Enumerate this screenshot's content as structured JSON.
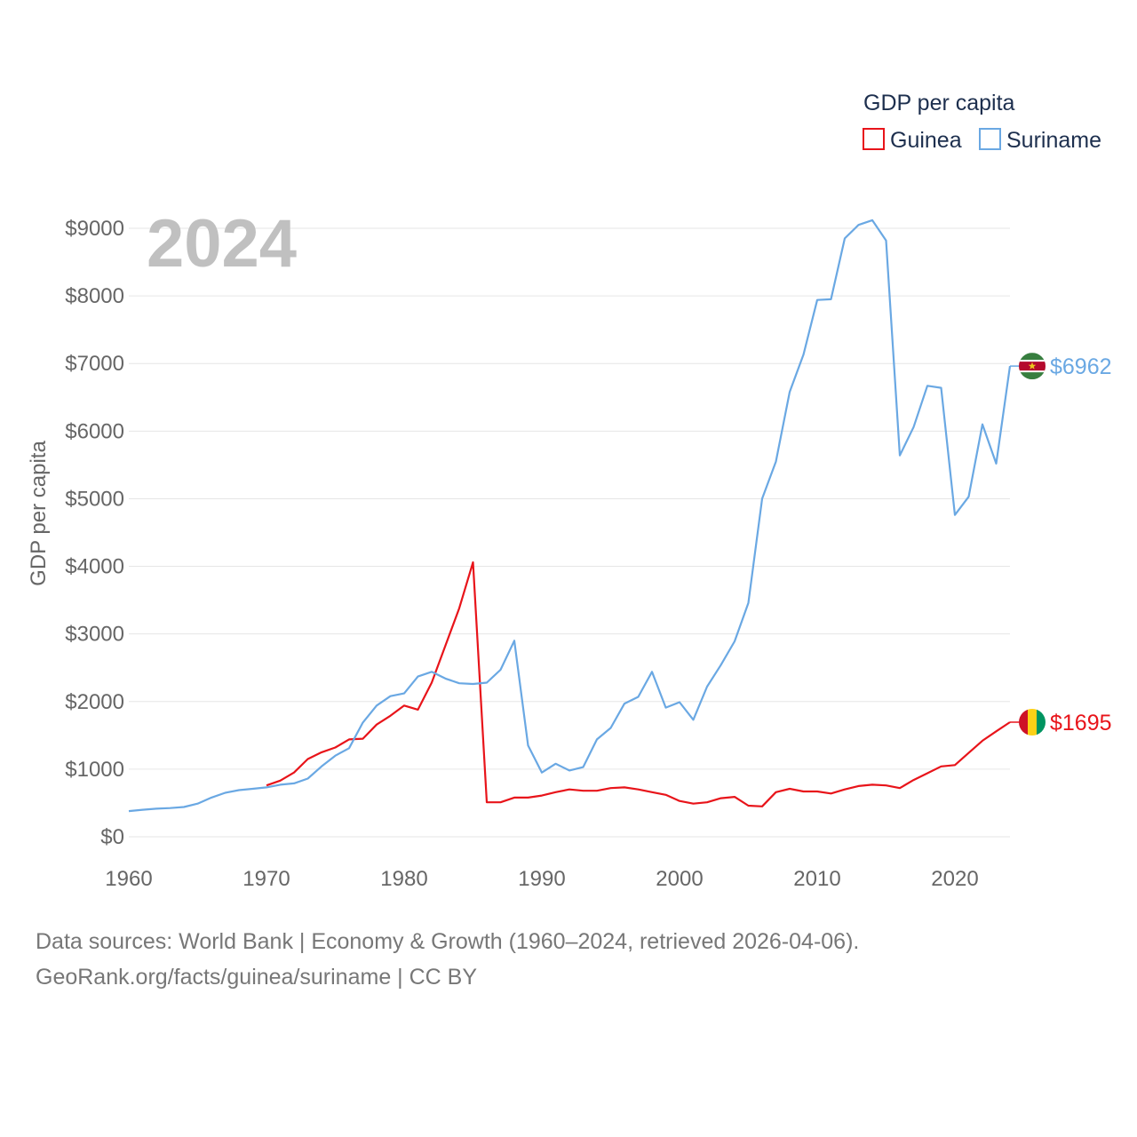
{
  "chart_data": {
    "type": "line",
    "title": "",
    "year_label": "2024",
    "xlabel": "",
    "ylabel": "GDP per capita",
    "xlim": [
      1960,
      2024
    ],
    "ylim": [
      0,
      9000
    ],
    "x_ticks": [
      1960,
      1970,
      1980,
      1990,
      2000,
      2010,
      2020
    ],
    "y_ticks": [
      0,
      1000,
      2000,
      3000,
      4000,
      5000,
      6000,
      7000,
      8000,
      9000
    ],
    "y_tick_labels": [
      "$0",
      "$1000",
      "$2000",
      "$3000",
      "$4000",
      "$5000",
      "$6000",
      "$7000",
      "$8000",
      "$9000"
    ],
    "legend": {
      "title": "GDP per capita",
      "position": "top-right",
      "items": [
        "Guinea",
        "Suriname"
      ]
    },
    "series": [
      {
        "name": "Guinea",
        "color": "#e8141a",
        "end_label": "$1695",
        "flag": "guinea-flag",
        "x": [
          1970,
          1971,
          1972,
          1973,
          1974,
          1975,
          1976,
          1977,
          1978,
          1979,
          1980,
          1981,
          1982,
          1983,
          1984,
          1985,
          1986,
          1987,
          1988,
          1989,
          1990,
          1991,
          1992,
          1993,
          1994,
          1995,
          1996,
          1997,
          1998,
          1999,
          2000,
          2001,
          2002,
          2003,
          2004,
          2005,
          2006,
          2007,
          2008,
          2009,
          2010,
          2011,
          2012,
          2013,
          2014,
          2015,
          2016,
          2017,
          2018,
          2019,
          2020,
          2021,
          2022,
          2023,
          2024
        ],
        "values": [
          760,
          830,
          950,
          1150,
          1250,
          1320,
          1440,
          1450,
          1660,
          1790,
          1940,
          1880,
          2280,
          2830,
          3380,
          4060,
          510,
          510,
          580,
          580,
          610,
          660,
          700,
          680,
          680,
          720,
          730,
          700,
          660,
          620,
          530,
          490,
          510,
          570,
          590,
          460,
          450,
          660,
          710,
          670,
          670,
          640,
          700,
          750,
          770,
          760,
          720,
          840,
          940,
          1040,
          1060,
          1240,
          1420,
          1560,
          1695
        ]
      },
      {
        "name": "Suriname",
        "color": "#6aa8e3",
        "end_label": "$6962",
        "flag": "suriname-flag",
        "x": [
          1960,
          1961,
          1962,
          1963,
          1964,
          1965,
          1966,
          1967,
          1968,
          1969,
          1970,
          1971,
          1972,
          1973,
          1974,
          1975,
          1976,
          1977,
          1978,
          1979,
          1980,
          1981,
          1982,
          1983,
          1984,
          1985,
          1986,
          1987,
          1988,
          1989,
          1990,
          1991,
          1992,
          1993,
          1994,
          1995,
          1996,
          1997,
          1998,
          1999,
          2000,
          2001,
          2002,
          2003,
          2004,
          2005,
          2006,
          2007,
          2008,
          2009,
          2010,
          2011,
          2012,
          2013,
          2014,
          2015,
          2016,
          2017,
          2018,
          2019,
          2020,
          2021,
          2022,
          2023,
          2024
        ],
        "values": [
          380,
          400,
          415,
          425,
          440,
          490,
          580,
          650,
          690,
          710,
          730,
          770,
          790,
          860,
          1040,
          1200,
          1310,
          1690,
          1940,
          2080,
          2120,
          2370,
          2440,
          2340,
          2270,
          2260,
          2280,
          2470,
          2900,
          1350,
          950,
          1080,
          980,
          1030,
          1440,
          1610,
          1970,
          2070,
          2440,
          1910,
          1990,
          1730,
          2220,
          2540,
          2890,
          3460,
          5000,
          5550,
          6580,
          7130,
          7940,
          7950,
          8850,
          9050,
          9120,
          8820,
          5640,
          6060,
          6670,
          6640,
          4760,
          5030,
          6100,
          5520,
          6962
        ]
      }
    ]
  },
  "footer": {
    "line1": "Data sources: World Bank | Economy & Growth (1960–2024, retrieved 2026-04-06).",
    "line2": "GeoRank.org/facts/guinea/suriname | CC BY"
  }
}
